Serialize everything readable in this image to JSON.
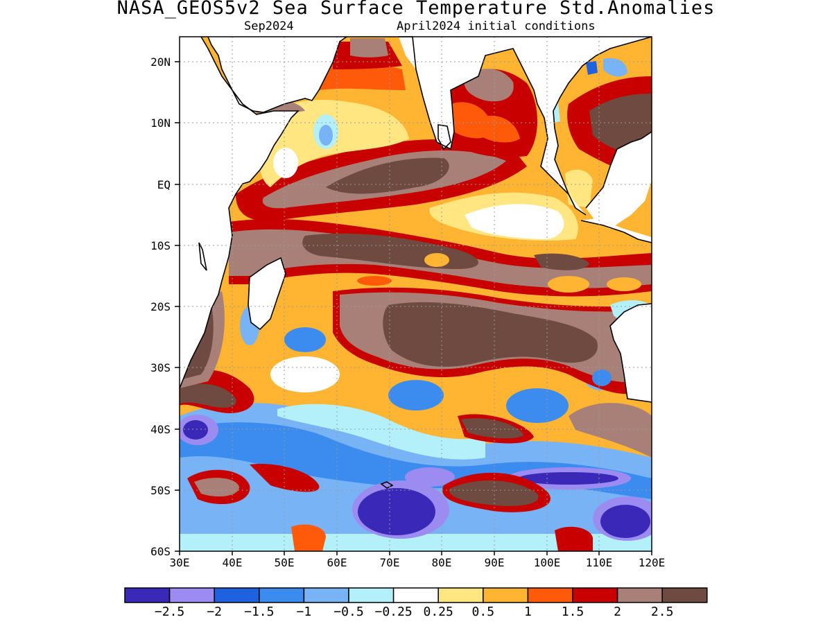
{
  "title": "NASA_GEOS5v2 Sea Surface Temperature Std.Anomalies",
  "subtitle_left": "Sep2024",
  "subtitle_right": "April2024 initial conditions",
  "lat_labels": [
    "20N",
    "10N",
    "EQ",
    "10S",
    "20S",
    "30S",
    "40S",
    "50S",
    "60S"
  ],
  "lon_labels": [
    "30E",
    "40E",
    "50E",
    "60E",
    "70E",
    "80E",
    "90E",
    "100E",
    "110E",
    "120E"
  ],
  "colorbar": {
    "labels": [
      "−2.5",
      "−2",
      "−1.5",
      "−1",
      "−0.5",
      "−0.25",
      "0.25",
      "0.5",
      "1",
      "1.5",
      "2",
      "2.5"
    ],
    "colors": [
      "#3a28b8",
      "#9c8cf2",
      "#1e62e0",
      "#3c8cf0",
      "#78b4f5",
      "#b4f0fa",
      "#ffffff",
      "#ffe680",
      "#ffb432",
      "#ff5a0a",
      "#c80000",
      "#a88078",
      "#6e4a40"
    ]
  },
  "chart_data": {
    "type": "heatmap",
    "title": "NASA_GEOS5v2 Sea Surface Temperature Std.Anomalies",
    "subtitle": "Sep2024  April2024 initial conditions",
    "lon_range": [
      30,
      120
    ],
    "lat_range": [
      -60,
      23
    ],
    "grid": true,
    "levels": [
      -2.5,
      -2,
      -1.5,
      -1,
      -0.5,
      -0.25,
      0.25,
      0.5,
      1,
      1.5,
      2,
      2.5
    ],
    "anomaly_regions": [
      {
        "lon": 70,
        "lat": -1,
        "value": 2.6
      },
      {
        "lon": 82,
        "lat": 9,
        "value": 2.4
      },
      {
        "lon": 65,
        "lat": 13,
        "value": 1.2
      },
      {
        "lon": 56,
        "lat": 11,
        "value": 0.6
      },
      {
        "lon": 52,
        "lat": 4,
        "value": 0.4
      },
      {
        "lon": 85,
        "lat": -4,
        "value": 0.0
      },
      {
        "lon": 60,
        "lat": -8,
        "value": 2.0
      },
      {
        "lon": 95,
        "lat": -7,
        "value": 1.0
      },
      {
        "lon": 88,
        "lat": -20,
        "value": 2.6
      },
      {
        "lon": 100,
        "lat": -18,
        "value": 2.3
      },
      {
        "lon": 115,
        "lat": 15,
        "value": 2.5
      },
      {
        "lon": 60,
        "lat": -27,
        "value": -0.6
      },
      {
        "lon": 78,
        "lat": -35,
        "value": -1.1
      },
      {
        "lon": 102,
        "lat": -36,
        "value": -1.2
      },
      {
        "lon": 70,
        "lat": -53,
        "value": -2.4
      },
      {
        "lon": 116,
        "lat": -53,
        "value": -2.1
      },
      {
        "lon": 34,
        "lat": -41,
        "value": -2.0
      },
      {
        "lon": 90,
        "lat": -46,
        "value": 1.6
      },
      {
        "lon": 95,
        "lat": -51,
        "value": 2.6
      }
    ]
  }
}
